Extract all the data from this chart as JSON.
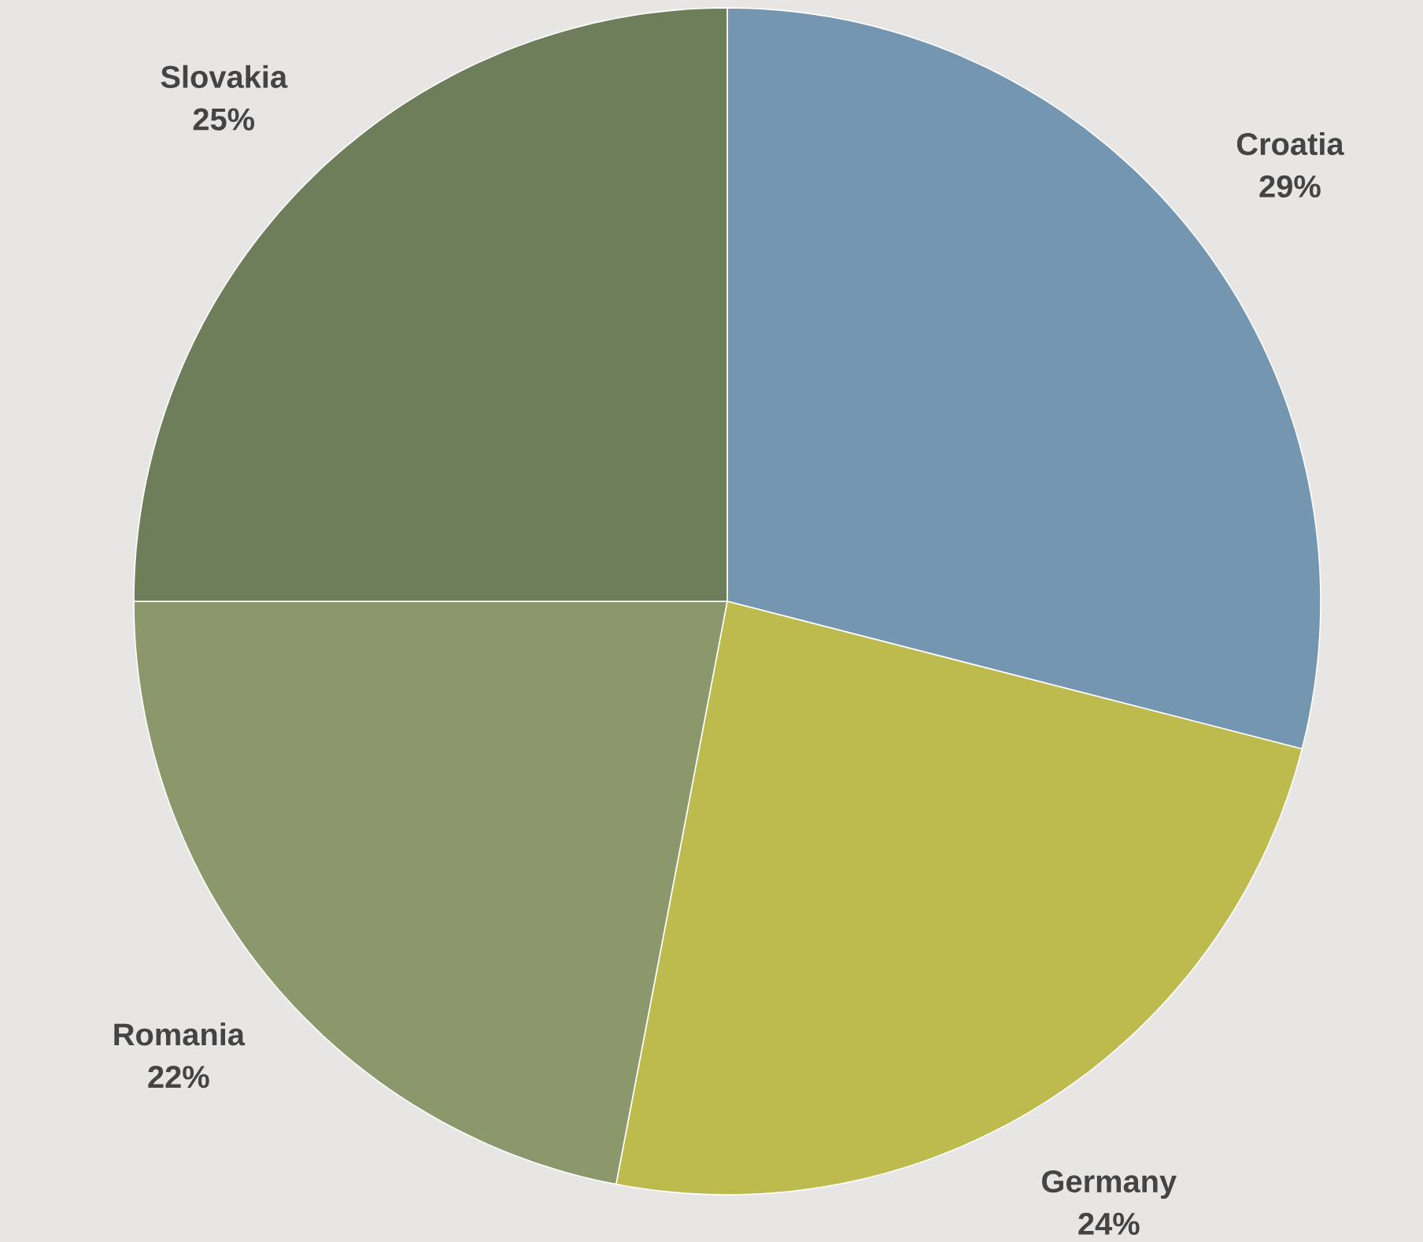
{
  "chart_data": {
    "type": "pie",
    "categories": [
      "Croatia",
      "Germany",
      "Romania",
      "Slovakia"
    ],
    "values": [
      29,
      24,
      22,
      25
    ],
    "value_labels": [
      "29%",
      "24%",
      "22%",
      "25%"
    ],
    "colors": [
      "#7596b0",
      "#bdbb4e",
      "#8a986c",
      "#6e7d5a"
    ]
  }
}
